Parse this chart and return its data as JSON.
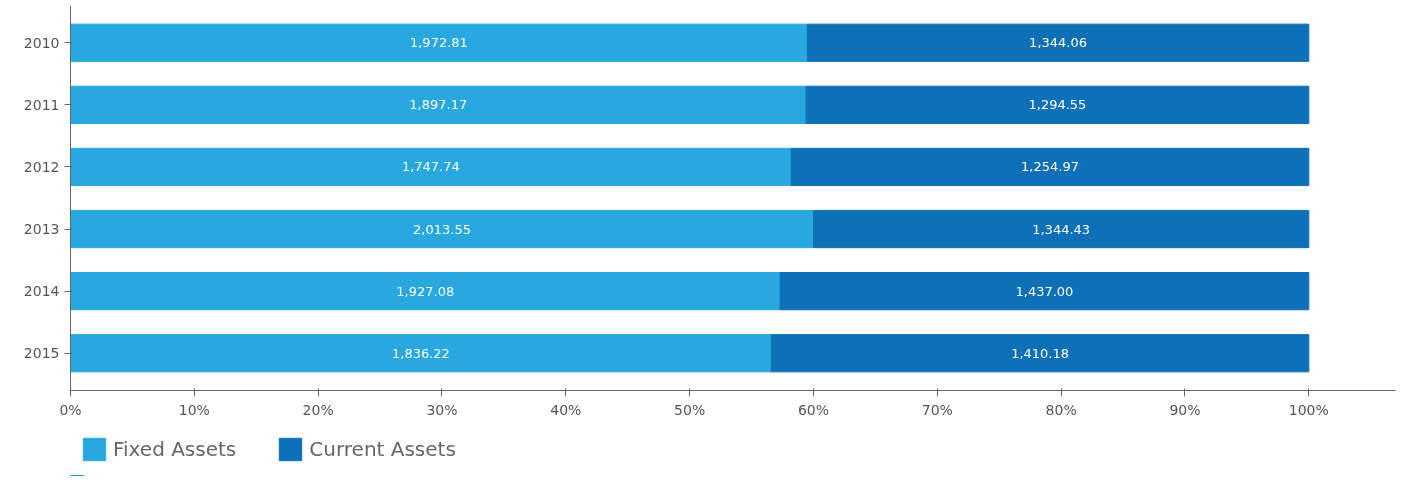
{
  "chart_data": {
    "type": "bar",
    "orientation": "horizontal",
    "stacked": true,
    "categories": [
      "2010",
      "2011",
      "2012",
      "2013",
      "2014",
      "2015"
    ],
    "series": [
      {
        "name": "Fixed Assets",
        "color": "#29a8e0",
        "values": [
          59.5,
          59.4,
          58.2,
          60.0,
          57.3,
          56.6
        ]
      },
      {
        "name": "Current Assets",
        "color": "#0e71b8",
        "values": [
          40.5,
          40.6,
          41.8,
          40.0,
          42.7,
          43.4
        ]
      }
    ],
    "annotations": [
      "1,972.81",
      "1,897.17",
      "1,747.74",
      "2,013.55",
      "1,927.08",
      "1,836.22",
      "1,344.06",
      "1,294.55",
      "1,254.97",
      "1,344.43",
      "1,437.00",
      "1,410.18"
    ],
    "xlim": [
      0,
      107
    ],
    "xticks": [
      {
        "value": 0,
        "label": "0%"
      },
      {
        "value": 10,
        "label": "10%"
      },
      {
        "value": 20,
        "label": "20%"
      },
      {
        "value": 30,
        "label": "30%"
      },
      {
        "value": 40,
        "label": "40%"
      },
      {
        "value": 50,
        "label": "50%"
      },
      {
        "value": 60,
        "label": "60%"
      },
      {
        "value": 70,
        "label": "70%"
      },
      {
        "value": 80,
        "label": "80%"
      },
      {
        "value": 90,
        "label": "90%"
      },
      {
        "value": 100,
        "label": "100%"
      }
    ],
    "grid": false,
    "legend": "bottom left"
  }
}
